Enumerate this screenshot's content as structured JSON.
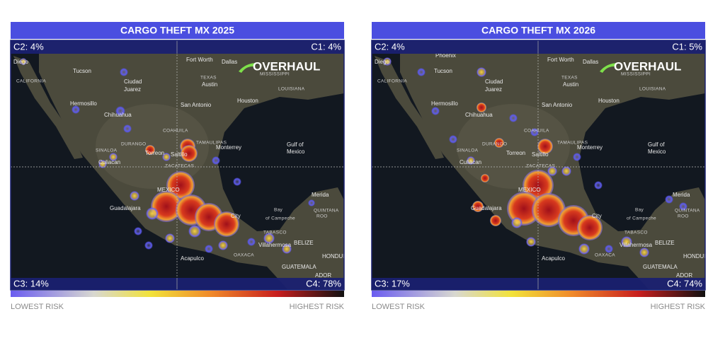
{
  "maps": [
    {
      "title": "CARGO THEFT MX 2025",
      "quadrants": {
        "top_left": "C2: 4%",
        "top_right": "C1: 4%",
        "bottom_left": "C3: 14%",
        "bottom_right": "C4: 78%"
      },
      "logo": "OVERHAUL",
      "legend": {
        "low": "LOWEST RISK",
        "high": "HIGHEST RISK"
      }
    },
    {
      "title": "CARGO THEFT MX 2026",
      "quadrants": {
        "top_left": "C2: 4%",
        "top_right": "C1: 5%",
        "bottom_left": "C3: 17%",
        "bottom_right": "C4: 74%"
      },
      "logo": "OVERHAUL",
      "legend": {
        "low": "LOWEST RISK",
        "high": "HIGHEST RISK"
      },
      "extra_labels": [
        "Phoenix"
      ]
    }
  ],
  "map_labels": [
    "Diego",
    "CALIFORNIA",
    "Tucson",
    "Fort Worth",
    "Dallas",
    "TEXAS",
    "MISSISSIPPI",
    "Austin",
    "LOUISIANA",
    "San Antonio",
    "Houston",
    "Ciudad",
    "Juarez",
    "Hermosillo",
    "Chihuahua",
    "COAHUILA",
    "TAMAULIPAS",
    "DURANGO",
    "Torreon",
    "Saltillo",
    "Monterrey",
    "SINALOA",
    "Culiacan",
    "ZACATECAS",
    "Gulf of",
    "Mexico",
    "MEXICO",
    "Guadalajara",
    "City",
    "Bay",
    "of Campeche",
    "Merida",
    "QUINTANA",
    "ROO",
    "TABASCO",
    "Villahermosa",
    "BELIZE",
    "OAXACA",
    "Acapulco",
    "GUATEMALA",
    "HONDURAS",
    "ADOR"
  ]
}
